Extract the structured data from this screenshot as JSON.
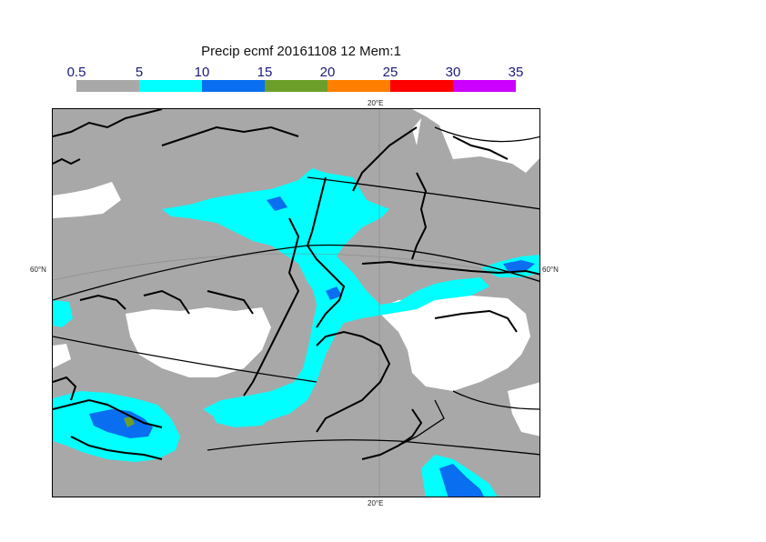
{
  "title": "Precip ecmf 20161108 12 Mem:1",
  "colorbar": {
    "levels": [
      "0.5",
      "5",
      "10",
      "15",
      "20",
      "25",
      "30",
      "35"
    ],
    "colors": [
      "#a8a8a8",
      "#00ffff",
      "#0a6ef0",
      "#6b9f2a",
      "#ff8000",
      "#ff0000",
      "#cc00ff"
    ]
  },
  "axes": {
    "lon_top": "20°E",
    "lon_bottom": "20°E",
    "lat_left": "60°N",
    "lat_right": "60°N"
  },
  "colors": {
    "land_outline": "#000000",
    "grid": "#888888"
  }
}
